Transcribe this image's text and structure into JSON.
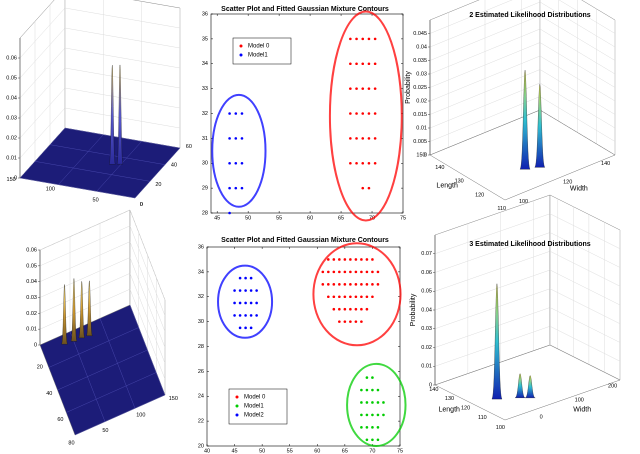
{
  "chart_data": [
    {
      "type": "surface",
      "xlim": [
        0,
        150
      ],
      "xticks": [
        0,
        50,
        100,
        150
      ],
      "ylim": [
        0,
        60
      ],
      "yticks": [
        0,
        20,
        40,
        60
      ],
      "zlim": [
        0,
        0.07
      ],
      "zticks": [
        0,
        0.01,
        0.02,
        0.03,
        0.04,
        0.05,
        0.06
      ],
      "floor_color": "#1c1c78",
      "peak_colors": [
        "#2a2a9a",
        "#5a5ad0",
        "#f0d060"
      ],
      "peaks": [
        {
          "x": 59,
          "y": 30,
          "z": 0.05
        },
        {
          "x": 50.5,
          "y": 31.6,
          "z": 0.05
        }
      ]
    },
    {
      "type": "scatter",
      "title": "Scatter Plot and Fitted Gaussian Mixture Contours",
      "xlim": [
        44,
        75
      ],
      "xticks": [
        45,
        50,
        55,
        60,
        65,
        70,
        75
      ],
      "ylim": [
        28,
        36
      ],
      "yticks": [
        28,
        29,
        30,
        31,
        32,
        33,
        34,
        35,
        36
      ],
      "legend": "upper left",
      "series": [
        {
          "name": "Model 0",
          "color": "#ff0000",
          "x": [
            66.5,
            67.5,
            68.5,
            69.5,
            70.5,
            66.5,
            67.5,
            68.5,
            69.5,
            70.5,
            66.5,
            67.5,
            68.5,
            69.5,
            70.5,
            66.5,
            67.5,
            68.5,
            69.5,
            70.5,
            66.5,
            67.5,
            68.5,
            69.5,
            70.5,
            66.5,
            67.5,
            68.5,
            69.5,
            70.5,
            68.5,
            69.5
          ],
          "values": [
            35,
            35,
            35,
            35,
            35,
            34,
            34,
            34,
            34,
            34,
            33,
            33,
            33,
            33,
            33,
            32,
            32,
            32,
            32,
            32,
            31,
            31,
            31,
            31,
            31,
            30,
            30,
            30,
            30,
            30,
            29,
            29
          ],
          "contour": {
            "cx": 69,
            "cy": 31.9,
            "rx": 5.8,
            "ry": 4.2
          }
        },
        {
          "name": "Model1",
          "color": "#0000ff",
          "x": [
            47,
            48,
            49,
            47,
            48,
            49,
            47,
            48,
            49,
            47,
            48,
            49,
            47
          ],
          "values": [
            32,
            32,
            32,
            31,
            31,
            31,
            30,
            30,
            30,
            29,
            29,
            29,
            28
          ],
          "contour": {
            "cx": 48.5,
            "cy": 30.5,
            "rx": 4.3,
            "ry": 2.25
          }
        }
      ]
    },
    {
      "type": "surface",
      "title": "2 Estimated Likelihood Distributions",
      "xlabel": "Length",
      "ylabel": "Width",
      "zlabel": "Probability",
      "xlim": [
        110,
        150
      ],
      "xticks": [
        110,
        120,
        130,
        140,
        150
      ],
      "ylim": [
        90,
        150
      ],
      "yticks": [
        100,
        120,
        140
      ],
      "zlim": [
        0,
        0.05
      ],
      "zticks": [
        0,
        0.005,
        0.01,
        0.015,
        0.02,
        0.025,
        0.03,
        0.035,
        0.04,
        0.045
      ],
      "peak_colors": [
        "#1020b0",
        "#30c0d0",
        "#e0e040"
      ],
      "peaks": [
        {
          "x": 121.5,
          "y": 112.7,
          "z": 0.037
        },
        {
          "x": 119.4,
          "y": 118.6,
          "z": 0.031
        }
      ]
    },
    {
      "type": "surface",
      "xlim": [
        0,
        80
      ],
      "xticks": [
        20,
        40,
        60,
        80
      ],
      "ylim": [
        0,
        150
      ],
      "yticks": [
        50,
        100,
        150
      ],
      "zlim": [
        0,
        0.06
      ],
      "zticks": [
        0,
        0.01,
        0.02,
        0.03,
        0.04,
        0.05,
        0.06
      ],
      "floor_color": "#1c1c78",
      "peak_colors": [
        "#6a5020",
        "#d09a30",
        "#f8e080"
      ],
      "peaks": [
        {
          "x": 8,
          "y": 35,
          "z": 0.038
        },
        {
          "x": 9,
          "y": 50,
          "z": 0.04
        },
        {
          "x": 9,
          "y": 63,
          "z": 0.036
        },
        {
          "x": 10,
          "y": 75,
          "z": 0.035
        }
      ]
    },
    {
      "type": "scatter",
      "title": "Scatter Plot and Fitted Gaussian Mixture Contours",
      "xlim": [
        40,
        75
      ],
      "xticks": [
        40,
        45,
        50,
        55,
        60,
        65,
        70,
        75
      ],
      "ylim": [
        20,
        36
      ],
      "yticks": [
        20,
        22,
        24,
        26,
        28,
        30,
        32,
        34,
        36
      ],
      "legend": "lower left",
      "series": [
        {
          "name": "Model 0",
          "color": "#ff0000",
          "x": [
            62,
            63,
            64,
            65,
            66,
            67,
            68,
            69,
            70,
            61,
            62,
            63,
            64,
            65,
            66,
            67,
            68,
            69,
            70,
            71,
            61,
            62,
            63,
            64,
            65,
            66,
            67,
            68,
            69,
            70,
            71,
            62,
            63,
            64,
            65,
            66,
            67,
            68,
            69,
            70,
            63,
            64,
            65,
            66,
            67,
            68,
            69,
            64,
            65,
            66,
            67,
            68
          ],
          "values": [
            35,
            35,
            35,
            35,
            35,
            35,
            35,
            35,
            35,
            34,
            34,
            34,
            34,
            34,
            34,
            34,
            34,
            34,
            34,
            34,
            33,
            33,
            33,
            33,
            33,
            33,
            33,
            33,
            33,
            33,
            33,
            32,
            32,
            32,
            32,
            32,
            32,
            32,
            32,
            32,
            31,
            31,
            31,
            31,
            31,
            31,
            31,
            30,
            30,
            30,
            30,
            30
          ],
          "contour": {
            "cx": 67.2,
            "cy": 32.2,
            "rx": 7.9,
            "ry": 4.1
          }
        },
        {
          "name": "Model1",
          "color": "#00cc00",
          "x": [
            69,
            70,
            68,
            69,
            70,
            71,
            68,
            69,
            70,
            71,
            72,
            68,
            69,
            70,
            71,
            72,
            68,
            69,
            70,
            71,
            69,
            70,
            71
          ],
          "values": [
            25.5,
            25.5,
            24.5,
            24.5,
            24.5,
            24.5,
            23.5,
            23.5,
            23.5,
            23.5,
            23.5,
            22.5,
            22.5,
            22.5,
            22.5,
            22.5,
            21.5,
            21.5,
            21.5,
            21.5,
            20.5,
            20.5,
            20.5
          ],
          "contour": {
            "cx": 70.7,
            "cy": 23.3,
            "rx": 5.3,
            "ry": 3.3
          }
        },
        {
          "name": "Model2",
          "color": "#0000ff",
          "x": [
            46,
            47,
            48,
            45,
            46,
            47,
            48,
            49,
            45,
            46,
            47,
            48,
            49,
            45,
            46,
            47,
            48,
            49,
            46,
            47,
            48
          ],
          "values": [
            33.5,
            33.5,
            33.5,
            32.5,
            32.5,
            32.5,
            32.5,
            32.5,
            31.5,
            31.5,
            31.5,
            31.5,
            31.5,
            30.5,
            30.5,
            30.5,
            30.5,
            30.5,
            29.5,
            29.5,
            29.5
          ],
          "contour": {
            "cx": 46.9,
            "cy": 31.6,
            "rx": 4.9,
            "ry": 2.9
          }
        }
      ]
    },
    {
      "type": "surface",
      "title": "3 Estimated Likelihood Distributions",
      "xlabel": "Length",
      "ylabel": "Width",
      "zlabel": "Probability",
      "xlim": [
        100,
        145
      ],
      "xticks": [
        100,
        110,
        120,
        130,
        140
      ],
      "ylim": [
        -100,
        250
      ],
      "yticks": [
        0,
        100,
        200
      ],
      "zlim": [
        0,
        0.08
      ],
      "zticks": [
        0,
        0.01,
        0.02,
        0.03,
        0.04,
        0.05,
        0.06,
        0.07
      ],
      "peak_colors": [
        "#1020b0",
        "#30c0d0",
        "#e0e040"
      ],
      "peaks": [
        {
          "x": 117.3,
          "y": -42.6,
          "z": 0.062
        },
        {
          "x": 112.7,
          "y": 6,
          "z": 0.013
        },
        {
          "x": 110,
          "y": 24,
          "z": 0.012
        }
      ]
    }
  ]
}
